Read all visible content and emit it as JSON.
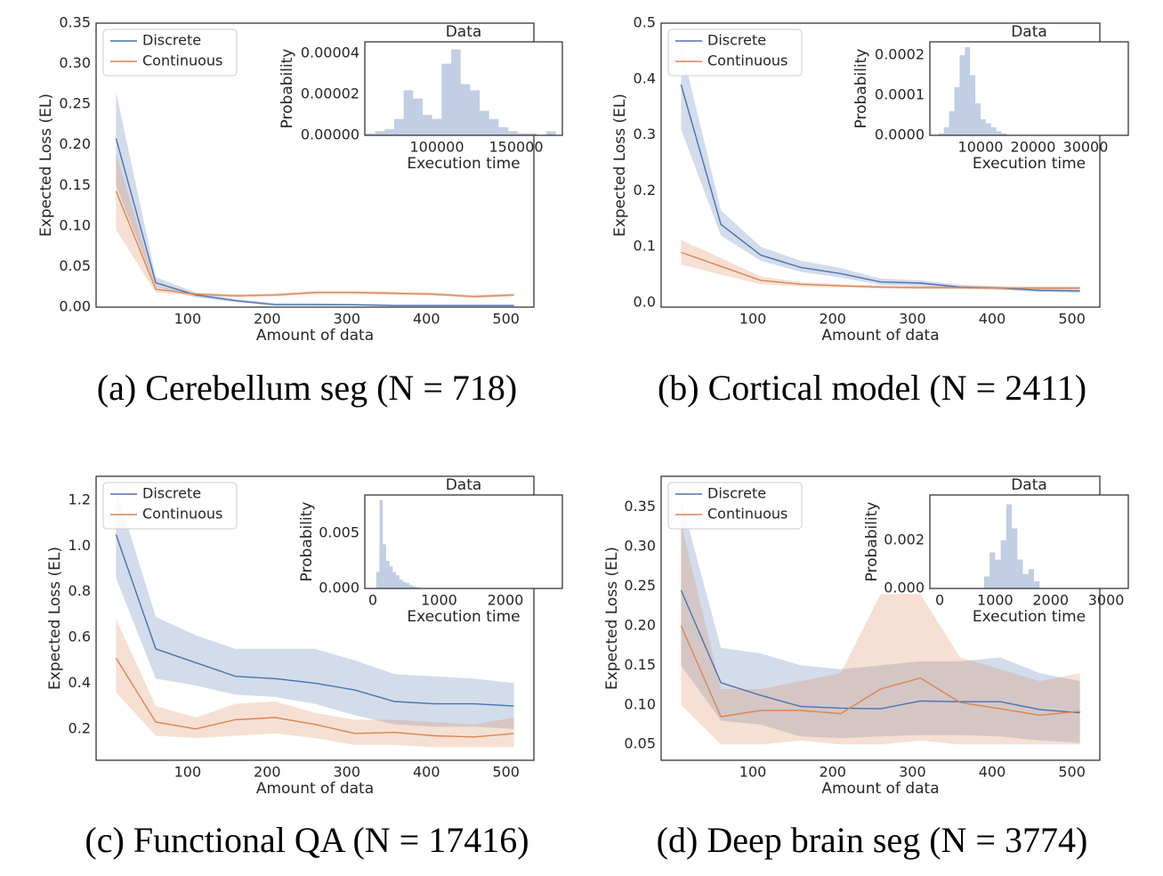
{
  "chart_data": [
    {
      "type": "line",
      "caption": "(a) Cerebellum seg (N = 718)",
      "xlabel": "Amount of data",
      "ylabel": "Expected Loss (EL)",
      "legend": "upper left",
      "x": [
        10,
        60,
        110,
        160,
        210,
        260,
        310,
        360,
        410,
        460,
        510
      ],
      "series": [
        {
          "name": "Discrete",
          "color": "#4c72b0",
          "values": [
            0.208,
            0.03,
            0.015,
            0.008,
            0.003,
            0.003,
            0.003,
            0.002,
            0.002,
            0.002,
            0.002
          ],
          "lower": [
            0.15,
            0.025,
            0.012,
            0.006,
            0.002,
            0.002,
            0.002,
            0.001,
            0.001,
            0.001,
            0.001
          ],
          "upper": [
            0.265,
            0.037,
            0.018,
            0.01,
            0.005,
            0.005,
            0.004,
            0.003,
            0.003,
            0.003,
            0.003
          ]
        },
        {
          "name": "Continuous",
          "color": "#dd8452",
          "values": [
            0.143,
            0.022,
            0.016,
            0.014,
            0.015,
            0.018,
            0.018,
            0.017,
            0.016,
            0.013,
            0.015
          ],
          "lower": [
            0.095,
            0.018,
            0.014,
            0.012,
            0.013,
            0.016,
            0.016,
            0.015,
            0.014,
            0.011,
            0.013
          ],
          "upper": [
            0.19,
            0.026,
            0.018,
            0.016,
            0.017,
            0.02,
            0.02,
            0.019,
            0.018,
            0.015,
            0.017
          ]
        }
      ],
      "xlim": [
        -15,
        535
      ],
      "ylim": [
        0,
        0.35
      ],
      "xticks": [
        100,
        200,
        300,
        400,
        500
      ],
      "yticks": [
        {
          "value": 0,
          "label": "0.00"
        },
        0.05,
        {
          "value": 0.1,
          "label": "0.10"
        },
        0.15,
        {
          "value": 0.2,
          "label": "0.20"
        },
        0.25,
        {
          "value": 0.3,
          "label": "0.30"
        },
        0.35
      ],
      "inset": {
        "type": "histogram",
        "title": "Data",
        "xlabel": "Execution time",
        "ylabel": "Probability",
        "color": "#4c72b0",
        "bins": [
          55000,
          61000,
          67000,
          73000,
          79000,
          85000,
          91000,
          97000,
          103000,
          109000,
          115000,
          121000,
          127000,
          133000,
          139000,
          145000,
          151000,
          157000,
          163000,
          169000,
          175000
        ],
        "counts": [
          1e-06,
          2e-06,
          3e-06,
          8e-06,
          2.2e-05,
          1.8e-05,
          1e-05,
          8e-06,
          3.5e-05,
          4.2e-05,
          2.5e-05,
          2.2e-05,
          1.2e-05,
          8e-06,
          4e-06,
          2e-06,
          1e-06,
          1e-06,
          0,
          2e-06
        ],
        "xlim": [
          54500,
          179200
        ],
        "ylim": [
          0,
          4.57e-05
        ],
        "xticks": [
          100000,
          150000
        ],
        "yticks": [
          {
            "value": 0,
            "label": "0.00000"
          },
          {
            "value": 2e-05,
            "label": "0.00002"
          },
          {
            "value": 4e-05,
            "label": "0.00004"
          }
        ]
      }
    },
    {
      "type": "line",
      "caption": "(b) Cortical model (N = 2411)",
      "xlabel": "Amount of data",
      "ylabel": "Expected Loss (EL)",
      "legend": "upper left",
      "x": [
        10,
        60,
        110,
        160,
        210,
        260,
        310,
        360,
        410,
        460,
        510
      ],
      "series": [
        {
          "name": "Discrete",
          "color": "#4c72b0",
          "values": [
            0.39,
            0.14,
            0.085,
            0.063,
            0.052,
            0.037,
            0.035,
            0.028,
            0.026,
            0.022,
            0.021
          ],
          "lower": [
            0.31,
            0.12,
            0.075,
            0.055,
            0.045,
            0.032,
            0.03,
            0.025,
            0.023,
            0.019,
            0.018
          ],
          "upper": [
            0.46,
            0.165,
            0.1,
            0.075,
            0.062,
            0.043,
            0.04,
            0.032,
            0.029,
            0.026,
            0.025
          ]
        },
        {
          "name": "Continuous",
          "color": "#dd8452",
          "values": [
            0.09,
            0.065,
            0.04,
            0.033,
            0.03,
            0.028,
            0.027,
            0.027,
            0.026,
            0.026,
            0.026
          ],
          "lower": [
            0.068,
            0.05,
            0.033,
            0.029,
            0.027,
            0.025,
            0.024,
            0.024,
            0.023,
            0.023,
            0.023
          ],
          "upper": [
            0.112,
            0.08,
            0.047,
            0.037,
            0.033,
            0.031,
            0.03,
            0.03,
            0.029,
            0.029,
            0.029
          ]
        }
      ],
      "xlim": [
        -15,
        535
      ],
      "ylim": [
        -0.008,
        0.5
      ],
      "xticks": [
        100,
        200,
        300,
        400,
        500
      ],
      "yticks": [
        {
          "value": 0,
          "label": "0.0"
        },
        0.1,
        0.2,
        0.3,
        0.4,
        0.5
      ],
      "inset": {
        "type": "histogram",
        "title": "Data",
        "xlabel": "Execution time",
        "ylabel": "Probability",
        "color": "#4c72b0",
        "bins": [
          2000,
          3000,
          4000,
          5000,
          6000,
          7000,
          8000,
          9000,
          10000,
          11000,
          12000,
          13000,
          14000,
          15000
        ],
        "counts": [
          5e-06,
          2e-05,
          6e-05,
          0.00012,
          0.0002,
          0.00022,
          0.00015,
          8e-05,
          4e-05,
          3e-05,
          2e-05,
          1e-05,
          5e-06
        ],
        "xlim": [
          340,
          38140
        ],
        "ylim": [
          0,
          0.000233
        ],
        "xticks": [
          10000,
          20000,
          30000
        ],
        "yticks": [
          {
            "value": 0,
            "label": "0.0000"
          },
          0.0001,
          0.0002
        ]
      }
    },
    {
      "type": "line",
      "caption": "(c) Functional QA (N = 17416)",
      "xlabel": "Amount of data",
      "ylabel": "Expected Loss (EL)",
      "legend": "upper left",
      "x": [
        10,
        60,
        110,
        160,
        210,
        260,
        310,
        360,
        410,
        460,
        510
      ],
      "series": [
        {
          "name": "Discrete",
          "color": "#4c72b0",
          "values": [
            1.05,
            0.55,
            0.49,
            0.43,
            0.42,
            0.4,
            0.37,
            0.32,
            0.31,
            0.31,
            0.3
          ],
          "lower": [
            0.86,
            0.42,
            0.39,
            0.35,
            0.34,
            0.31,
            0.26,
            0.22,
            0.21,
            0.21,
            0.2
          ],
          "upper": [
            1.25,
            0.69,
            0.61,
            0.55,
            0.55,
            0.55,
            0.5,
            0.44,
            0.43,
            0.42,
            0.4
          ]
        },
        {
          "name": "Continuous",
          "color": "#dd8452",
          "values": [
            0.51,
            0.23,
            0.2,
            0.24,
            0.25,
            0.22,
            0.18,
            0.185,
            0.17,
            0.165,
            0.18
          ],
          "lower": [
            0.36,
            0.17,
            0.16,
            0.17,
            0.18,
            0.16,
            0.13,
            0.13,
            0.12,
            0.12,
            0.12
          ],
          "upper": [
            0.68,
            0.3,
            0.25,
            0.31,
            0.32,
            0.27,
            0.24,
            0.24,
            0.23,
            0.22,
            0.25
          ]
        }
      ],
      "xlim": [
        -15,
        535
      ],
      "ylim": [
        0.063,
        1.305
      ],
      "xticks": [
        100,
        200,
        300,
        400,
        500
      ],
      "yticks": [
        0.2,
        0.4,
        0.6,
        0.8,
        {
          "value": 1,
          "label": "1.0"
        },
        1.2
      ],
      "inset": {
        "type": "histogram",
        "title": "Data",
        "xlabel": "Execution time",
        "ylabel": "Probability",
        "color": "#4c72b0",
        "bins": [
          50,
          100,
          150,
          200,
          250,
          300,
          350,
          400,
          450,
          500,
          550,
          600,
          650,
          700
        ],
        "counts": [
          0.0015,
          0.008,
          0.004,
          0.0025,
          0.002,
          0.0015,
          0.0012,
          0.0008,
          0.0006,
          0.0005,
          0.0003,
          0.0002,
          0.0001
        ],
        "xlim": [
          -121,
          2860
        ],
        "ylim": [
          0,
          0.00847
        ],
        "xticks": [
          0,
          1000,
          2000
        ],
        "yticks": [
          {
            "value": 0,
            "label": "0.000"
          },
          0.005
        ]
      }
    },
    {
      "type": "line",
      "caption": "(d) Deep brain seg (N = 3774)",
      "xlabel": "Amount of data",
      "ylabel": "Expected Loss (EL)",
      "legend": "upper left",
      "x": [
        10,
        60,
        110,
        160,
        210,
        260,
        310,
        360,
        410,
        460,
        510
      ],
      "series": [
        {
          "name": "Discrete",
          "color": "#4c72b0",
          "values": [
            0.245,
            0.128,
            0.112,
            0.098,
            0.096,
            0.095,
            0.105,
            0.104,
            0.104,
            0.094,
            0.09
          ],
          "lower": [
            0.15,
            0.08,
            0.075,
            0.06,
            0.058,
            0.06,
            0.062,
            0.062,
            0.06,
            0.055,
            0.052
          ],
          "upper": [
            0.36,
            0.172,
            0.165,
            0.15,
            0.145,
            0.15,
            0.155,
            0.155,
            0.16,
            0.14,
            0.13
          ]
        },
        {
          "name": "Continuous",
          "color": "#dd8452",
          "values": [
            0.2,
            0.085,
            0.093,
            0.093,
            0.089,
            0.12,
            0.134,
            0.103,
            0.095,
            0.087,
            0.092
          ],
          "lower": [
            0.1,
            0.05,
            0.05,
            0.055,
            0.05,
            0.05,
            0.055,
            0.05,
            0.05,
            0.05,
            0.05
          ],
          "upper": [
            0.33,
            0.12,
            0.12,
            0.13,
            0.14,
            0.24,
            0.24,
            0.16,
            0.145,
            0.13,
            0.14
          ]
        }
      ],
      "xlim": [
        -15,
        535
      ],
      "ylim": [
        0.03,
        0.389
      ],
      "xticks": [
        100,
        200,
        300,
        400,
        500
      ],
      "yticks": [
        0.05,
        {
          "value": 0.1,
          "label": "0.10"
        },
        0.15,
        {
          "value": 0.2,
          "label": "0.20"
        },
        0.25,
        {
          "value": 0.3,
          "label": "0.30"
        },
        0.35
      ],
      "inset": {
        "type": "histogram",
        "title": "Data",
        "xlabel": "Execution time",
        "ylabel": "Probability",
        "color": "#4c72b0",
        "bins": [
          800,
          900,
          1000,
          1100,
          1200,
          1300,
          1400,
          1500,
          1600,
          1700,
          1800
        ],
        "counts": [
          0.0005,
          0.0015,
          0.0012,
          0.002,
          0.0035,
          0.0025,
          0.0012,
          0.0006,
          0.0008,
          0.0003
        ],
        "xlim": [
          -177,
          3400
        ],
        "ylim": [
          0,
          0.00389
        ],
        "xticks": [
          0,
          1000,
          2000,
          3000
        ],
        "yticks": [
          {
            "value": 0,
            "label": "0.000"
          },
          0.002
        ]
      }
    }
  ]
}
